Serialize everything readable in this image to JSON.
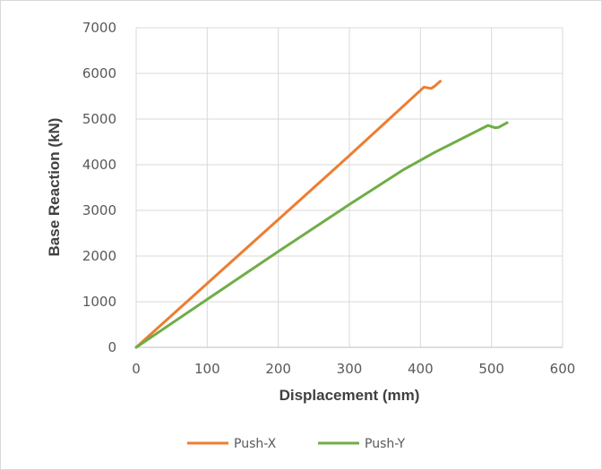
{
  "chart_data": {
    "type": "line",
    "title": "",
    "xlabel": "Displacement (mm)",
    "ylabel": "Base Reaction (kN)",
    "xlim": [
      0,
      600
    ],
    "ylim": [
      0,
      7000
    ],
    "xticks": [
      0,
      100,
      200,
      300,
      400,
      500,
      600
    ],
    "yticks": [
      0,
      1000,
      2000,
      3000,
      4000,
      5000,
      6000,
      7000
    ],
    "grid": true,
    "legend_position": "bottom",
    "series": [
      {
        "name": "Push-X",
        "color": "#ED7D31",
        "x": [
          0,
          100,
          200,
          300,
          405,
          415,
          420,
          428
        ],
        "y": [
          0,
          1400,
          2800,
          4200,
          5700,
          5670,
          5720,
          5830
        ]
      },
      {
        "name": "Push-Y",
        "color": "#70AD47",
        "x": [
          0,
          100,
          200,
          300,
          375,
          420,
          495,
          505,
          510,
          522
        ],
        "y": [
          0,
          1050,
          2100,
          3130,
          3880,
          4270,
          4860,
          4810,
          4820,
          4920
        ]
      }
    ]
  }
}
